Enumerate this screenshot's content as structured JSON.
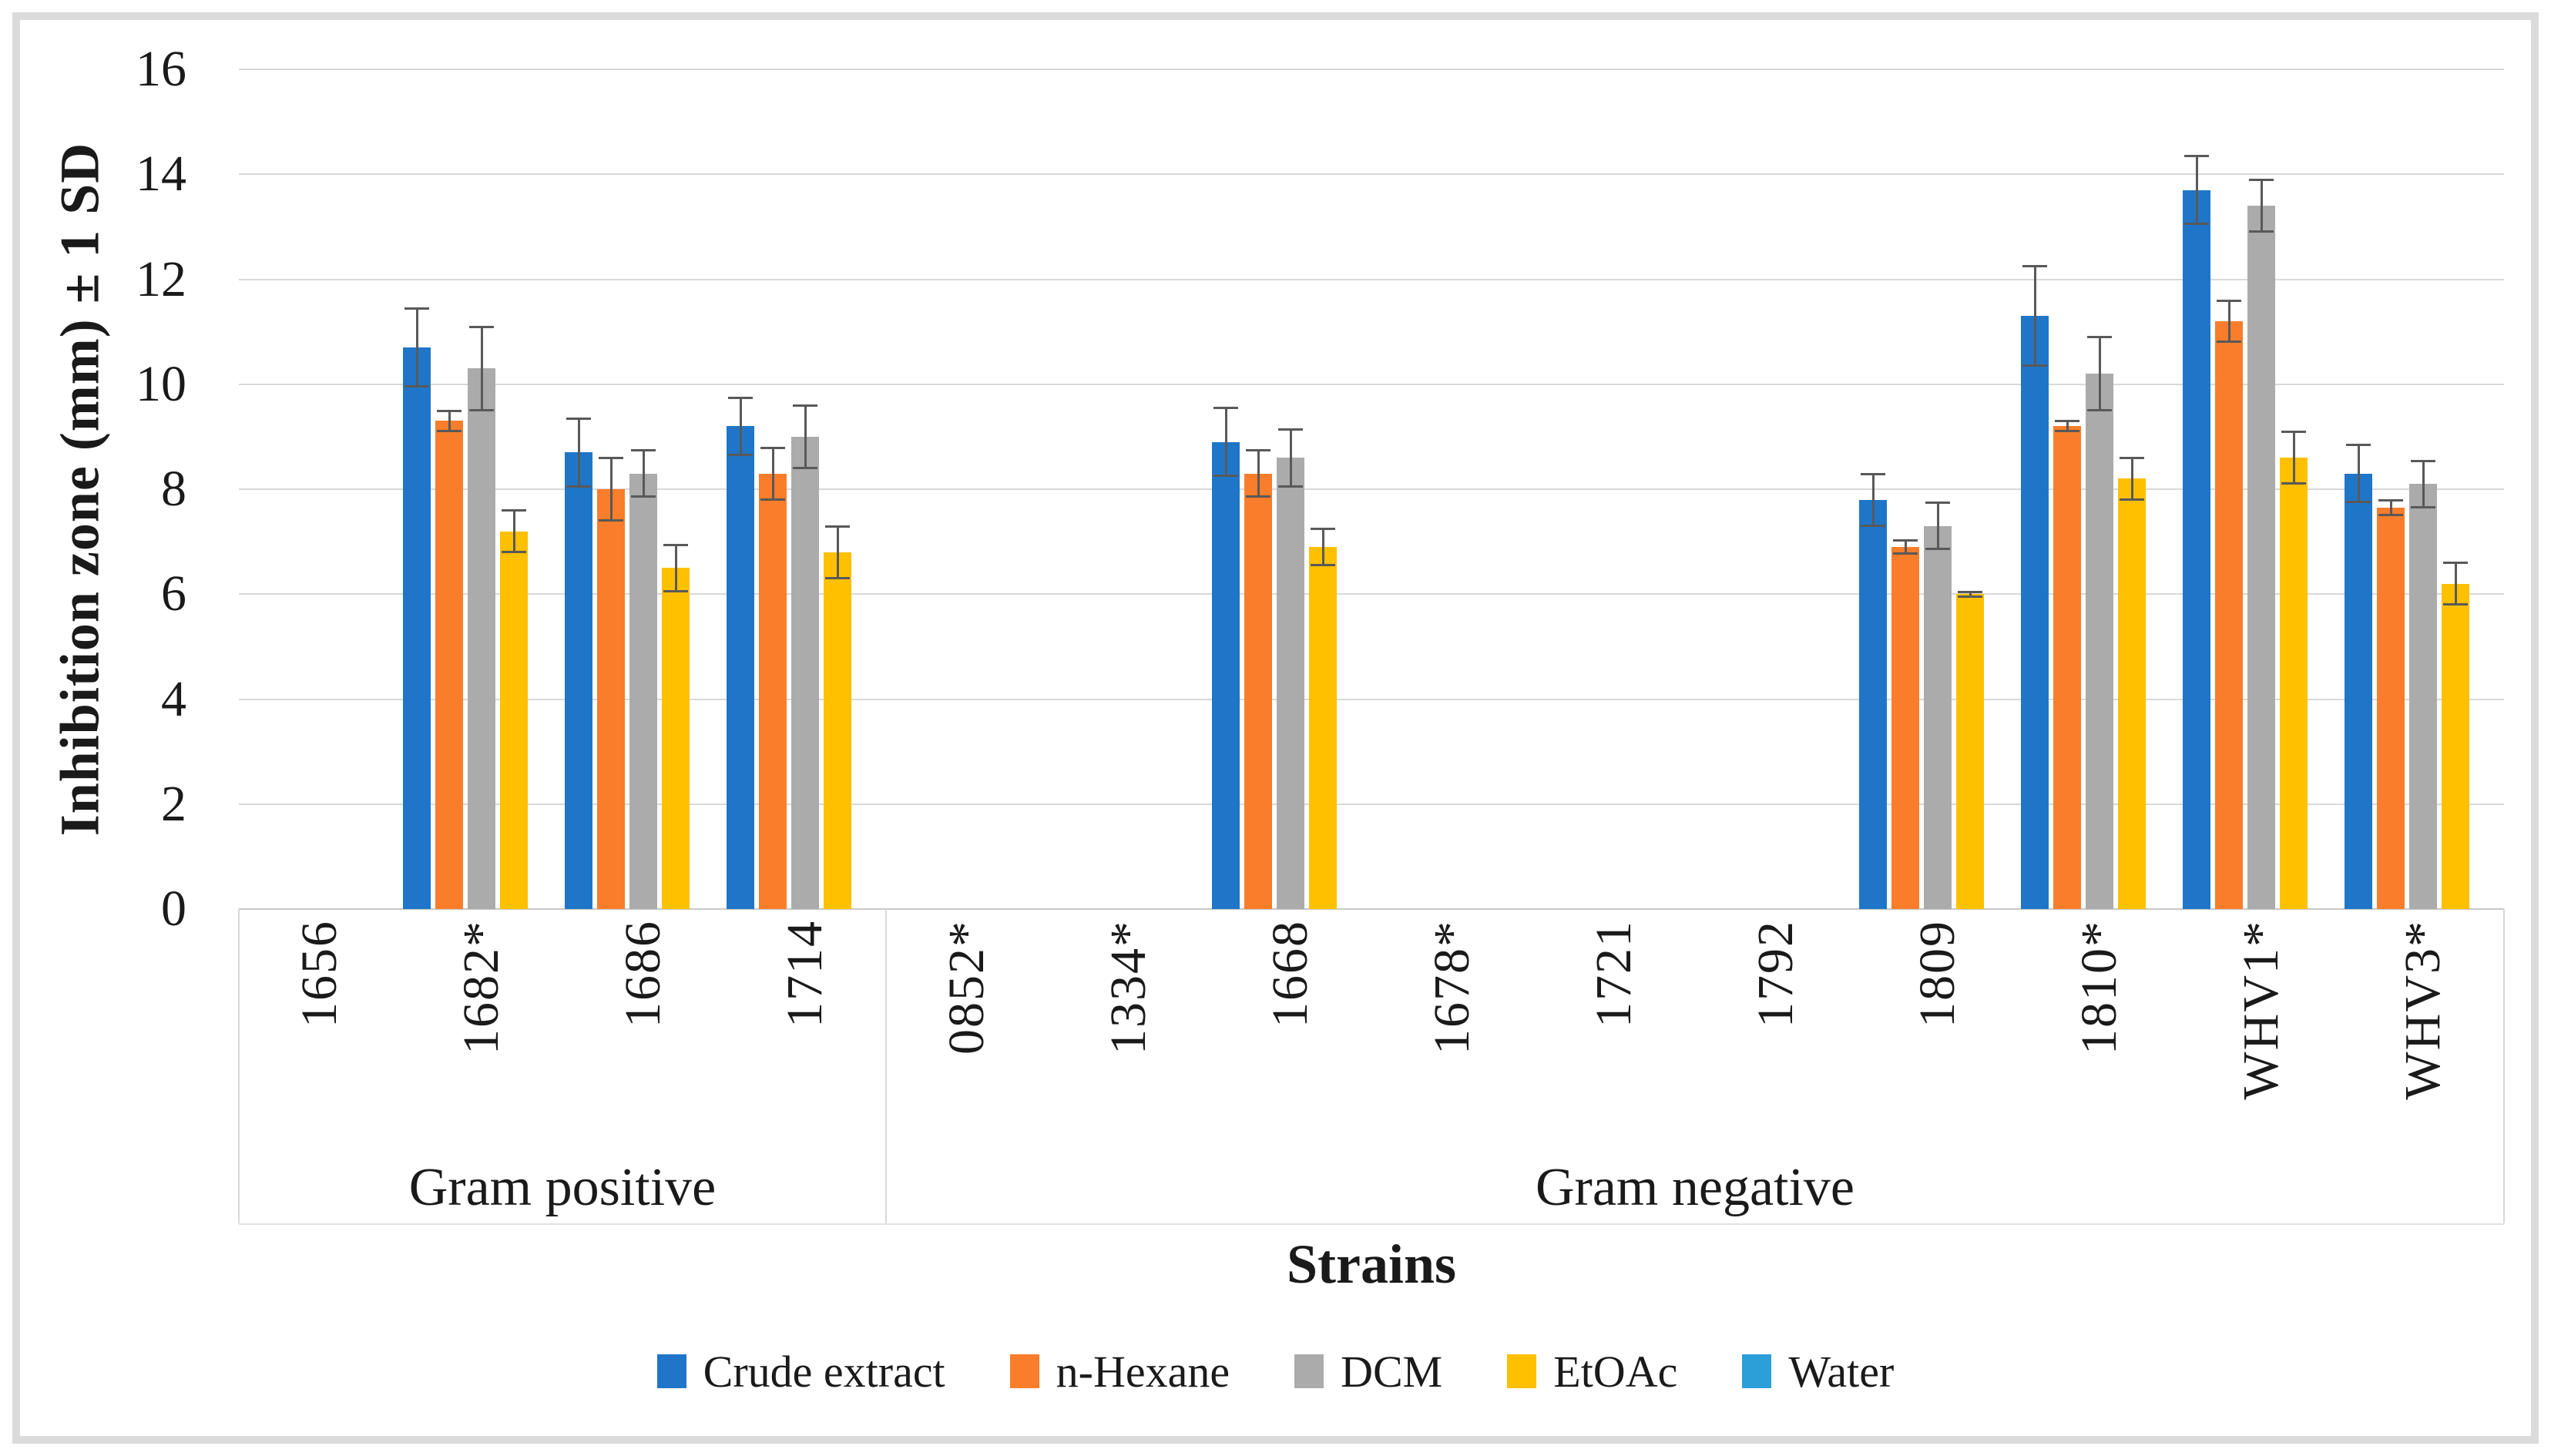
{
  "frame": {
    "border_color": "#dbdbdb"
  },
  "chart_data": {
    "type": "bar",
    "title": "",
    "xlabel": "Strains",
    "ylabel": "Inhibition zone (mm) ± 1 SD",
    "ylim": [
      0,
      16
    ],
    "yticks": [
      0,
      2,
      4,
      6,
      8,
      10,
      12,
      14,
      16
    ],
    "grid": "horizontal",
    "legend_position": "bottom",
    "error_bar_color": "#595959",
    "gridline_color": "#d9d9d9",
    "categories": [
      "1656",
      "1682*",
      "1686",
      "1714",
      "0852*",
      "1334*",
      "1668",
      "1678*",
      "1721",
      "1792",
      "1809",
      "1810*",
      "WHV1*",
      "WHV3*"
    ],
    "category_groups": [
      {
        "label": "Gram positive",
        "from": 0,
        "to": 3
      },
      {
        "label": "Gram negative",
        "from": 4,
        "to": 13
      }
    ],
    "series": [
      {
        "name": "Crude extract",
        "color": "#1f76c8",
        "values": [
          null,
          10.7,
          8.7,
          9.2,
          null,
          null,
          8.9,
          null,
          null,
          null,
          7.8,
          11.3,
          13.7,
          8.3
        ],
        "sd": [
          null,
          0.75,
          0.65,
          0.55,
          null,
          null,
          0.65,
          null,
          null,
          null,
          0.5,
          0.95,
          0.65,
          0.55
        ]
      },
      {
        "name": "n-Hexane",
        "color": "#f97d2a",
        "values": [
          null,
          9.3,
          8.0,
          8.3,
          null,
          null,
          8.3,
          null,
          null,
          null,
          6.9,
          9.2,
          11.2,
          7.65
        ],
        "sd": [
          null,
          0.2,
          0.6,
          0.5,
          null,
          null,
          0.45,
          null,
          null,
          null,
          0.13,
          0.1,
          0.4,
          0.15
        ]
      },
      {
        "name": "DCM",
        "color": "#ababab",
        "values": [
          null,
          10.3,
          8.3,
          9.0,
          null,
          null,
          8.6,
          null,
          null,
          null,
          7.3,
          10.2,
          13.4,
          8.1
        ],
        "sd": [
          null,
          0.8,
          0.45,
          0.6,
          null,
          null,
          0.55,
          null,
          null,
          null,
          0.45,
          0.7,
          0.5,
          0.45
        ]
      },
      {
        "name": "EtOAc",
        "color": "#ffc000",
        "values": [
          null,
          7.2,
          6.5,
          6.8,
          null,
          null,
          6.9,
          null,
          null,
          null,
          6.0,
          8.2,
          8.6,
          6.2
        ],
        "sd": [
          null,
          0.4,
          0.45,
          0.5,
          null,
          null,
          0.35,
          null,
          null,
          null,
          0.05,
          0.4,
          0.5,
          0.4
        ]
      },
      {
        "name": "Water",
        "color": "#2c9fd9",
        "values": [
          null,
          null,
          null,
          null,
          null,
          null,
          null,
          null,
          null,
          null,
          null,
          null,
          null,
          null
        ],
        "sd": [
          null,
          null,
          null,
          null,
          null,
          null,
          null,
          null,
          null,
          null,
          null,
          null,
          null,
          null
        ]
      }
    ]
  }
}
